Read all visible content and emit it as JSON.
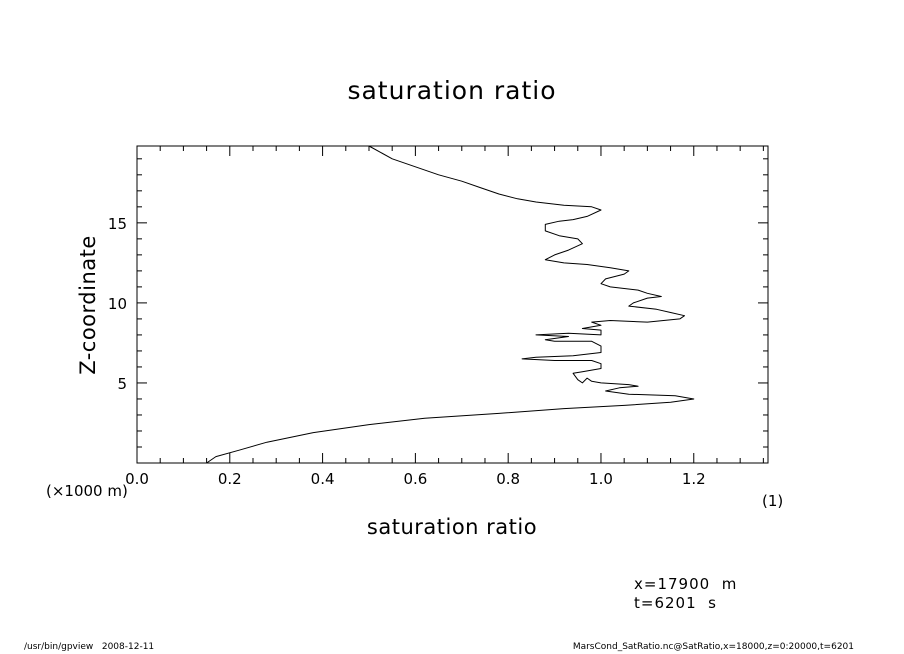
{
  "chart_data": {
    "type": "line",
    "title": "saturation ratio",
    "xlabel": "saturation ratio",
    "ylabel": "Z-coordinate",
    "x_unit": "(1)",
    "y_unit": "(×1000 m)",
    "xlim": [
      0.0,
      1.36
    ],
    "ylim": [
      0.0,
      19.8
    ],
    "x_ticks": [
      0.0,
      0.2,
      0.4,
      0.6,
      0.8,
      1.0,
      1.2
    ],
    "x_tick_labels": [
      "0.0",
      "0.2",
      "0.4",
      "0.6",
      "0.8",
      "1.0",
      "1.2"
    ],
    "y_ticks": [
      5,
      10,
      15
    ],
    "y_tick_labels": [
      "5",
      "10",
      "15"
    ],
    "grid": false,
    "series": [
      {
        "points": [
          [
            0.15,
            0.0
          ],
          [
            0.17,
            0.4
          ],
          [
            0.22,
            0.8
          ],
          [
            0.28,
            1.3
          ],
          [
            0.38,
            1.9
          ],
          [
            0.5,
            2.4
          ],
          [
            0.62,
            2.8
          ],
          [
            0.78,
            3.1
          ],
          [
            0.92,
            3.4
          ],
          [
            1.05,
            3.6
          ],
          [
            1.15,
            3.8
          ],
          [
            1.2,
            4.0
          ],
          [
            1.16,
            4.2
          ],
          [
            1.06,
            4.3
          ],
          [
            1.01,
            4.5
          ],
          [
            1.04,
            4.7
          ],
          [
            1.08,
            4.8
          ],
          [
            1.06,
            4.9
          ],
          [
            1.0,
            5.0
          ],
          [
            0.98,
            5.1
          ],
          [
            0.97,
            5.3
          ],
          [
            0.96,
            5.0
          ],
          [
            0.95,
            5.2
          ],
          [
            0.94,
            5.6
          ],
          [
            0.96,
            5.7
          ],
          [
            1.0,
            5.9
          ],
          [
            1.0,
            6.2
          ],
          [
            0.98,
            6.4
          ],
          [
            0.9,
            6.4
          ],
          [
            0.83,
            6.5
          ],
          [
            0.86,
            6.6
          ],
          [
            0.94,
            6.7
          ],
          [
            1.0,
            6.9
          ],
          [
            1.0,
            7.3
          ],
          [
            0.98,
            7.6
          ],
          [
            0.9,
            7.6
          ],
          [
            0.88,
            7.7
          ],
          [
            0.93,
            7.9
          ],
          [
            0.86,
            8.0
          ],
          [
            0.93,
            8.1
          ],
          [
            1.0,
            8.0
          ],
          [
            1.0,
            8.3
          ],
          [
            0.96,
            8.4
          ],
          [
            1.0,
            8.6
          ],
          [
            0.98,
            8.8
          ],
          [
            1.02,
            8.9
          ],
          [
            1.1,
            8.8
          ],
          [
            1.17,
            9.0
          ],
          [
            1.18,
            9.2
          ],
          [
            1.15,
            9.4
          ],
          [
            1.12,
            9.6
          ],
          [
            1.06,
            9.8
          ],
          [
            1.07,
            10.0
          ],
          [
            1.1,
            10.3
          ],
          [
            1.13,
            10.4
          ],
          [
            1.1,
            10.6
          ],
          [
            1.08,
            10.8
          ],
          [
            1.02,
            11.0
          ],
          [
            1.0,
            11.2
          ],
          [
            1.01,
            11.5
          ],
          [
            1.05,
            11.8
          ],
          [
            1.06,
            12.0
          ],
          [
            1.02,
            12.2
          ],
          [
            0.97,
            12.4
          ],
          [
            0.92,
            12.5
          ],
          [
            0.88,
            12.7
          ],
          [
            0.9,
            13.0
          ],
          [
            0.93,
            13.3
          ],
          [
            0.96,
            13.7
          ],
          [
            0.95,
            14.0
          ],
          [
            0.91,
            14.2
          ],
          [
            0.88,
            14.5
          ],
          [
            0.88,
            14.9
          ],
          [
            0.91,
            15.1
          ],
          [
            0.94,
            15.2
          ],
          [
            0.97,
            15.4
          ],
          [
            1.0,
            15.8
          ],
          [
            0.98,
            16.0
          ],
          [
            0.92,
            16.1
          ],
          [
            0.86,
            16.3
          ],
          [
            0.82,
            16.5
          ],
          [
            0.78,
            16.8
          ],
          [
            0.74,
            17.2
          ],
          [
            0.7,
            17.6
          ],
          [
            0.65,
            18.0
          ],
          [
            0.6,
            18.5
          ],
          [
            0.55,
            19.0
          ],
          [
            0.5,
            19.8
          ]
        ]
      }
    ]
  },
  "info": {
    "line1": "x=17900  m",
    "line2": "t=6201  s"
  },
  "footer": {
    "left": "/usr/bin/gpview   2008-12-11",
    "right": "MarsCond_SatRatio.nc@SatRatio,x=18000,z=0:20000,t=6201"
  },
  "colors": {
    "line": "#000000",
    "axes": "#000000",
    "background": "#ffffff"
  }
}
